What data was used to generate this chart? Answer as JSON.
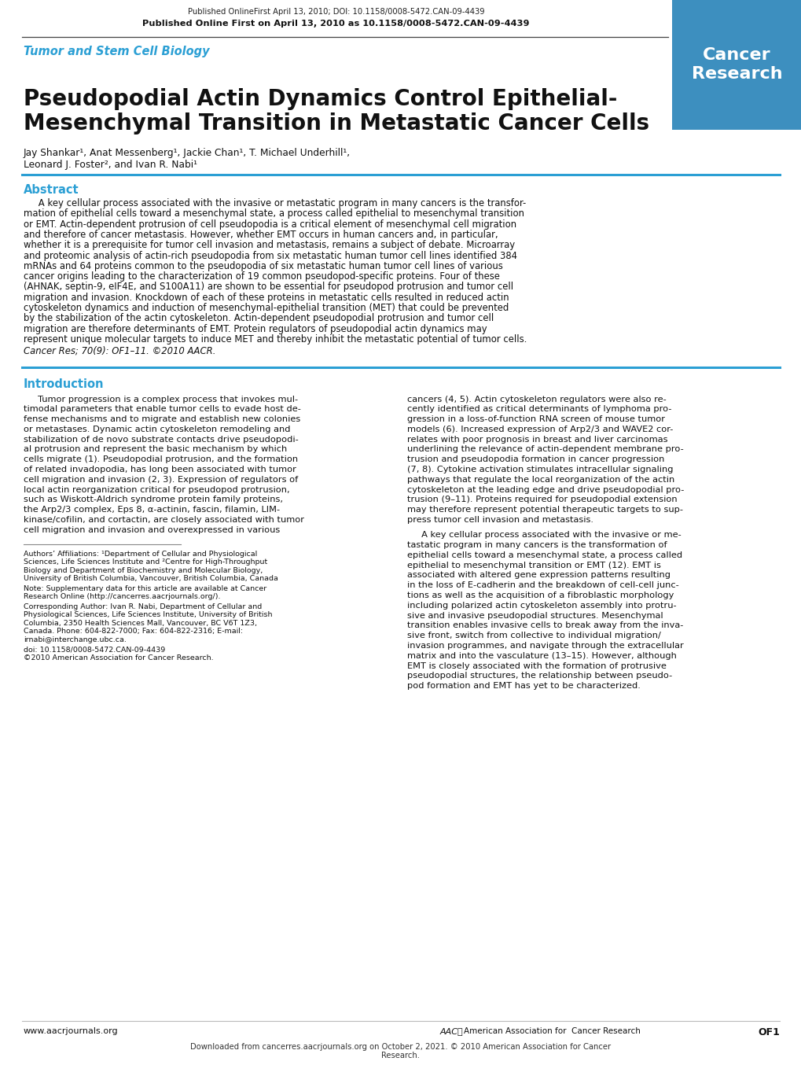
{
  "bg_color": "#ffffff",
  "header_line1": "Published OnlineFirst April 13, 2010; DOI: 10.1158/0008-5472.CAN-09-4439",
  "header_line2": "Published Online First on April 13, 2010 as 10.1158/0008-5472.CAN-09-4439",
  "journal_label": "Tumor and Stem Cell Biology",
  "journal_label_color": "#2b9fd4",
  "cancer_research_box_color": "#3d8fbf",
  "cancer_research_text": "Cancer\nResearch",
  "paper_title_line1": "Pseudopodial Actin Dynamics Control Epithelial-",
  "paper_title_line2": "Mesenchymal Transition in Metastatic Cancer Cells",
  "authors_line1": "Jay Shankar¹, Anat Messenberg¹, Jackie Chan¹, T. Michael Underhill¹,",
  "authors_line2": "Leonard J. Foster², and Ivan R. Nabi¹",
  "abstract_title": "Abstract",
  "abstract_title_color": "#2b9fd4",
  "abstract_text_lines": [
    "     A key cellular process associated with the invasive or metastatic program in many cancers is the transfor-",
    "mation of epithelial cells toward a mesenchymal state, a process called epithelial to mesenchymal transition",
    "or EMT. Actin-dependent protrusion of cell pseudopodia is a critical element of mesenchymal cell migration",
    "and therefore of cancer metastasis. However, whether EMT occurs in human cancers and, in particular,",
    "whether it is a prerequisite for tumor cell invasion and metastasis, remains a subject of debate. Microarray",
    "and proteomic analysis of actin-rich pseudopodia from six metastatic human tumor cell lines identified 384",
    "mRNAs and 64 proteins common to the pseudopodia of six metastatic human tumor cell lines of various",
    "cancer origins leading to the characterization of 19 common pseudopod-specific proteins. Four of these",
    "(AHNAK, septin-9, eIF4E, and S100A11) are shown to be essential for pseudopod protrusion and tumor cell",
    "migration and invasion. Knockdown of each of these proteins in metastatic cells resulted in reduced actin",
    "cytoskeleton dynamics and induction of mesenchymal-epithelial transition (MET) that could be prevented",
    "by the stabilization of the actin cytoskeleton. Actin-dependent pseudopodial protrusion and tumor cell",
    "migration are therefore determinants of EMT. Protein regulators of pseudopodial actin dynamics may",
    "represent unique molecular targets to induce MET and thereby inhibit the metastatic potential of tumor cells."
  ],
  "cancer_res_citation": "Cancer Res; 70(9): OF1–11. ©2010 AACR.",
  "intro_title": "Introduction",
  "intro_title_color": "#2b9fd4",
  "intro_col1_lines": [
    "     Tumor progression is a complex process that invokes mul-",
    "timodal parameters that enable tumor cells to evade host de-",
    "fense mechanisms and to migrate and establish new colonies",
    "or metastases. Dynamic actin cytoskeleton remodeling and",
    "stabilization of de novo substrate contacts drive pseudopodi-",
    "al protrusion and represent the basic mechanism by which",
    "cells migrate (1). Pseudopodial protrusion, and the formation",
    "of related invadopodia, has long been associated with tumor",
    "cell migration and invasion (2, 3). Expression of regulators of",
    "local actin reorganization critical for pseudopod protrusion,",
    "such as Wiskott-Aldrich syndrome protein family proteins,",
    "the Arp2/3 complex, Eps 8, α-actinin, fascin, filamin, LIM-",
    "kinase/cofilin, and cortactin, are closely associated with tumor",
    "cell migration and invasion and overexpressed in various"
  ],
  "intro_col2_lines": [
    "cancers (4, 5). Actin cytoskeleton regulators were also re-",
    "cently identified as critical determinants of lymphoma pro-",
    "gression in a loss-of-function RNA screen of mouse tumor",
    "models (6). Increased expression of Arp2/3 and WAVE2 cor-",
    "relates with poor prognosis in breast and liver carcinomas",
    "underlining the relevance of actin-dependent membrane pro-",
    "trusion and pseudopodia formation in cancer progression",
    "(7, 8). Cytokine activation stimulates intracellular signaling",
    "pathways that regulate the local reorganization of the actin",
    "cytoskeleton at the leading edge and drive pseudopodial pro-",
    "trusion (9–11). Proteins required for pseudopodial extension",
    "may therefore represent potential therapeutic targets to sup-",
    "press tumor cell invasion and metastasis.",
    "",
    "     A key cellular process associated with the invasive or me-",
    "tastatic program in many cancers is the transformation of",
    "epithelial cells toward a mesenchymal state, a process called",
    "epithelial to mesenchymal transition or EMT (12). EMT is",
    "associated with altered gene expression patterns resulting",
    "in the loss of E-cadherin and the breakdown of cell-cell junc-",
    "tions as well as the acquisition of a fibroblastic morphology",
    "including polarized actin cytoskeleton assembly into protru-",
    "sive and invasive pseudopodial structures. Mesenchymal",
    "transition enables invasive cells to break away from the inva-",
    "sive front, switch from collective to individual migration/",
    "invasion programmes, and navigate through the extracellular",
    "matrix and into the vasculature (13–15). However, although",
    "EMT is closely associated with the formation of protrusive",
    "pseudopodial structures, the relationship between pseudo-",
    "pod formation and EMT has yet to be characterized."
  ],
  "footnote_affiliations_lines": [
    "Authors’ Affiliations: ¹Department of Cellular and Physiological",
    "Sciences, Life Sciences Institute and ²Centre for High-Throughput",
    "Biology and Department of Biochemistry and Molecular Biology,",
    "University of British Columbia, Vancouver, British Columbia, Canada"
  ],
  "footnote_note_lines": [
    "Note: Supplementary data for this article are available at Cancer",
    "Research Online (http://cancerres.aacrjournals.org/)."
  ],
  "footnote_corresponding_lines": [
    "Corresponding Author: Ivan R. Nabi, Department of Cellular and",
    "Physiological Sciences, Life Sciences Institute, University of British",
    "Columbia, 2350 Health Sciences Mall, Vancouver, BC V6T 1Z3,",
    "Canada. Phone: 604-822-7000; Fax: 604-822-2316; E-mail:",
    "irnabi@interchange.ubc.ca."
  ],
  "footnote_doi": "doi: 10.1158/0008-5472.CAN-09-4439",
  "footnote_copyright": "©2010 American Association for Cancer Research.",
  "footer_url": "www.aacrjournals.org",
  "footer_page": "OF1",
  "footer_aacr": "American Association for  Cancer Research",
  "footer_download_line1": "Downloaded from cancerres.aacrjournals.org on October 2, 2021. © 2010 American Association for Cancer",
  "footer_download_line2": "Research.",
  "divider_color": "#2b9fd4",
  "header_separator_color": "#333333",
  "footnote_separator_color": "#888888"
}
